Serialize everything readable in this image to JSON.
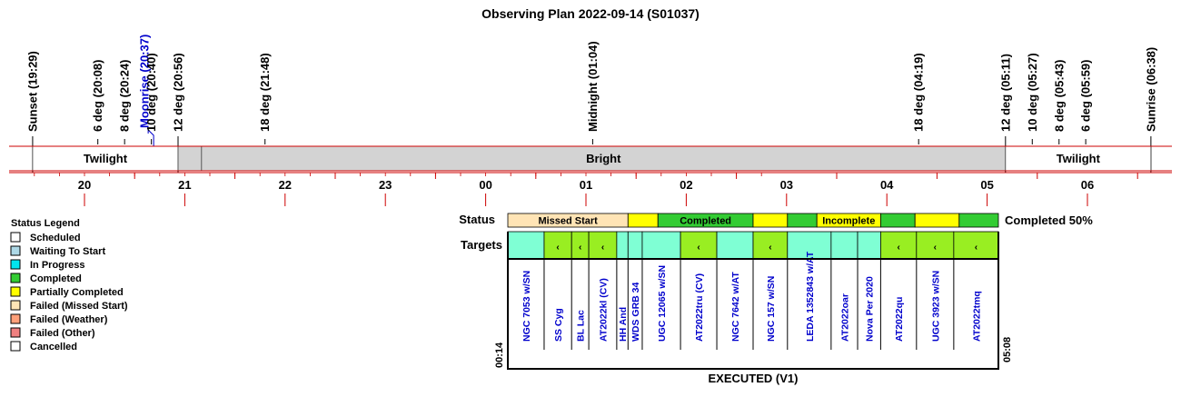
{
  "title": "Observing Plan 2022-09-14 (S01037)",
  "colors": {
    "line_red": "#cc0000",
    "twilight_bg": "#ffffff",
    "dark_grey": "#d3d3d3",
    "event_text": "#000000",
    "moon_text": "#0000cc",
    "target_text": "#0000cc",
    "scheduled": "#ffffff",
    "waiting": "#add8e6",
    "in_progress": "#00e5ee",
    "completed": "#33cc33",
    "partial": "#ffff00",
    "failed_missed": "#ffe4b5",
    "failed_weather": "#ffa07a",
    "failed_other": "#f08080",
    "cancelled": "#ffffff",
    "target_cyan": "#7fffd4",
    "target_green": "#99ee22"
  },
  "chart_data": {
    "type": "timeline",
    "x_unit": "hours since 19:00 local",
    "xlim": [
      19.42,
      26.77
    ],
    "hour_labels": [
      "20",
      "21",
      "22",
      "23",
      "00",
      "01",
      "02",
      "03",
      "04",
      "05",
      "06"
    ],
    "events": [
      {
        "label": "Sunset (19:29)",
        "h": 19.483,
        "color": "event_text",
        "line": "long"
      },
      {
        "label": "6 deg (20:08)",
        "h": 20.133,
        "color": "event_text",
        "line": "short"
      },
      {
        "label": "8 deg (20:24)",
        "h": 20.4,
        "color": "event_text",
        "line": "short"
      },
      {
        "label": "Moonrise (20:37)",
        "h": 20.617,
        "color": "moon_text",
        "line": "angled"
      },
      {
        "label": "10 deg (20:40)",
        "h": 20.667,
        "color": "event_text",
        "line": "short"
      },
      {
        "label": "12 deg (20:56)",
        "h": 20.933,
        "color": "event_text",
        "line": "long"
      },
      {
        "label": "18 deg (21:48)",
        "h": 21.8,
        "color": "event_text",
        "line": "short"
      },
      {
        "label": "Midnight (01:04)",
        "h": 25.067,
        "color": "event_text",
        "line": "short"
      },
      {
        "label": "18 deg (04:19)",
        "h": 28.317,
        "color": "event_text",
        "line": "short"
      },
      {
        "label": "12 deg (05:11)",
        "h": 29.183,
        "color": "event_text",
        "line": "long"
      },
      {
        "label": "10 deg (05:27)",
        "h": 29.45,
        "color": "event_text",
        "line": "short"
      },
      {
        "label": "8 deg (05:43)",
        "h": 29.717,
        "color": "event_text",
        "line": "short"
      },
      {
        "label": "6 deg (05:59)",
        "h": 29.983,
        "color": "event_text",
        "line": "short"
      },
      {
        "label": "Sunrise (06:38)",
        "h": 30.633,
        "color": "event_text",
        "line": "long"
      }
    ],
    "sky_bands": [
      {
        "label": "Twilight",
        "start": 19.483,
        "end": 20.933,
        "fill": "twilight_bg"
      },
      {
        "label": "",
        "start": 20.933,
        "end": 21.167,
        "fill": "dark_grey"
      },
      {
        "label": "Bright",
        "start": 21.167,
        "end": 29.183,
        "fill": "dark_grey"
      },
      {
        "label": "Twilight",
        "start": 29.183,
        "end": 30.633,
        "fill": "twilight_bg"
      }
    ],
    "status_label": "Status",
    "status_bar": [
      {
        "text": "Missed Start",
        "start": 0,
        "end": 0.245,
        "fill": "failed_missed"
      },
      {
        "text": "",
        "start": 0.245,
        "end": 0.306,
        "fill": "partial"
      },
      {
        "text": "Completed",
        "start": 0.306,
        "end": 0.5,
        "fill": "completed"
      },
      {
        "text": "",
        "start": 0.5,
        "end": 0.57,
        "fill": "partial"
      },
      {
        "text": "",
        "start": 0.57,
        "end": 0.63,
        "fill": "completed"
      },
      {
        "text": "Incomplete",
        "start": 0.63,
        "end": 0.76,
        "fill": "partial"
      },
      {
        "text": "",
        "start": 0.76,
        "end": 0.83,
        "fill": "completed"
      },
      {
        "text": "",
        "start": 0.83,
        "end": 0.92,
        "fill": "partial"
      },
      {
        "text": "",
        "start": 0.92,
        "end": 1.0,
        "fill": "completed"
      }
    ],
    "status_summary": "Completed 50%",
    "targets_label": "Targets",
    "targets": [
      {
        "name": "NGC 7053 w/SN",
        "start": 0,
        "end": 0.074,
        "fill": "target_cyan",
        "marker": ""
      },
      {
        "name": "SS Cyg",
        "start": 0.074,
        "end": 0.13,
        "fill": "target_green",
        "marker": "‹"
      },
      {
        "name": "BL Lac",
        "start": 0.13,
        "end": 0.165,
        "fill": "target_green",
        "marker": "‹"
      },
      {
        "name": "AT2022kl (CV)",
        "start": 0.165,
        "end": 0.222,
        "fill": "target_green",
        "marker": "‹"
      },
      {
        "name": "HH And",
        "start": 0.222,
        "end": 0.245,
        "fill": "target_cyan",
        "marker": ""
      },
      {
        "name": "WDS GRB 34",
        "start": 0.245,
        "end": 0.274,
        "fill": "target_cyan",
        "marker": ""
      },
      {
        "name": "UGC 12065 w/SN",
        "start": 0.274,
        "end": 0.352,
        "fill": "target_cyan",
        "marker": ""
      },
      {
        "name": "AT2022tru (CV)",
        "start": 0.352,
        "end": 0.426,
        "fill": "target_green",
        "marker": "‹"
      },
      {
        "name": "NGC 7642 w/AT",
        "start": 0.426,
        "end": 0.5,
        "fill": "target_cyan",
        "marker": ""
      },
      {
        "name": "NGC 157 w/SN",
        "start": 0.5,
        "end": 0.57,
        "fill": "target_green",
        "marker": "‹"
      },
      {
        "name": "LEDA 1352843 w/AT",
        "start": 0.57,
        "end": 0.659,
        "fill": "target_cyan",
        "marker": ""
      },
      {
        "name": "AT2022oar",
        "start": 0.659,
        "end": 0.713,
        "fill": "target_cyan",
        "marker": ""
      },
      {
        "name": "Nova Per 2020",
        "start": 0.713,
        "end": 0.76,
        "fill": "target_cyan",
        "marker": ""
      },
      {
        "name": "AT2022qu",
        "start": 0.76,
        "end": 0.833,
        "fill": "target_green",
        "marker": "‹"
      },
      {
        "name": "UGC 3923 w/SN",
        "start": 0.833,
        "end": 0.909,
        "fill": "target_green",
        "marker": "‹"
      },
      {
        "name": "AT2022tmq",
        "start": 0.909,
        "end": 1.0,
        "fill": "target_green",
        "marker": "‹"
      }
    ],
    "start_time": "00:14",
    "end_time": "05:08",
    "footer": "EXECUTED (V1)"
  },
  "legend": {
    "title": "Status Legend",
    "items": [
      {
        "label": "Scheduled",
        "color": "scheduled"
      },
      {
        "label": "Waiting To Start",
        "color": "waiting"
      },
      {
        "label": "In Progress",
        "color": "in_progress"
      },
      {
        "label": "Completed",
        "color": "completed"
      },
      {
        "label": "Partially Completed",
        "color": "partial"
      },
      {
        "label": "Failed (Missed Start)",
        "color": "failed_missed"
      },
      {
        "label": "Failed (Weather)",
        "color": "failed_weather"
      },
      {
        "label": "Failed (Other)",
        "color": "failed_other"
      },
      {
        "label": "Cancelled",
        "color": "cancelled"
      }
    ]
  }
}
